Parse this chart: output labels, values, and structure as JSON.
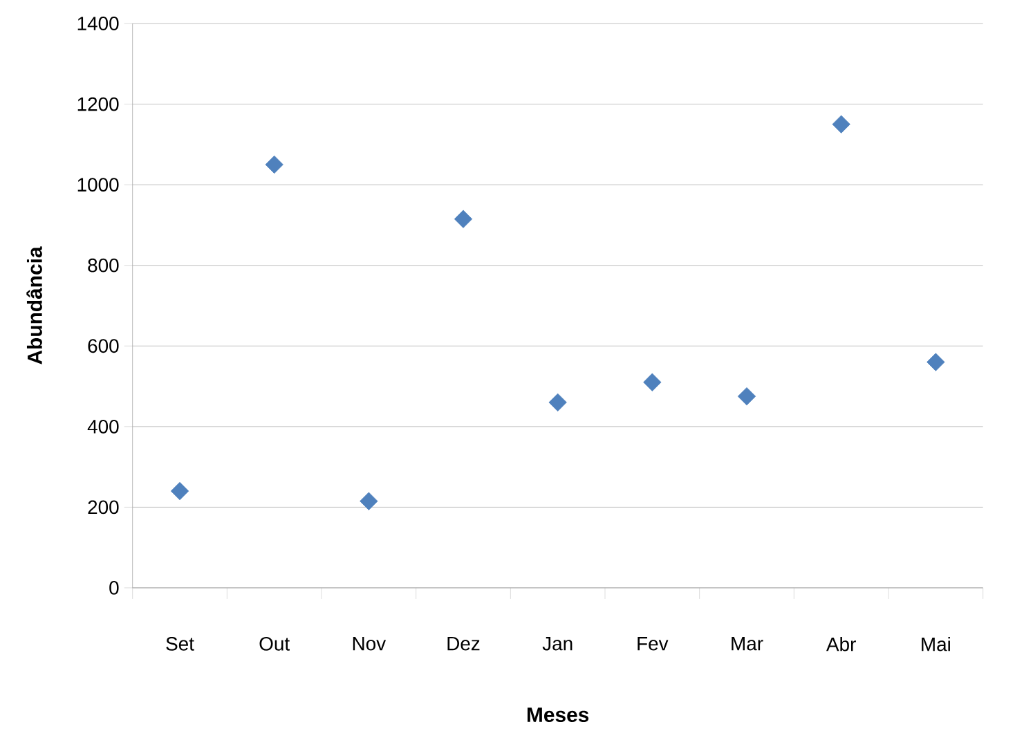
{
  "chart_data": {
    "type": "scatter",
    "xlabel": "Meses",
    "ylabel": "Abundância",
    "categories": [
      "Set",
      "Out",
      "Nov",
      "Dez",
      "Jan",
      "Fev",
      "Mar",
      "Abr",
      "Mai"
    ],
    "series": [
      {
        "color": "#4f81bd",
        "values": [
          240,
          1050,
          215,
          915,
          460,
          510,
          475,
          1150,
          560
        ]
      }
    ],
    "ylim": [
      0,
      1400
    ],
    "yticks": [
      0,
      200,
      400,
      600,
      800,
      1000,
      1200,
      1400
    ],
    "grid": "y",
    "marker": "diamond"
  }
}
